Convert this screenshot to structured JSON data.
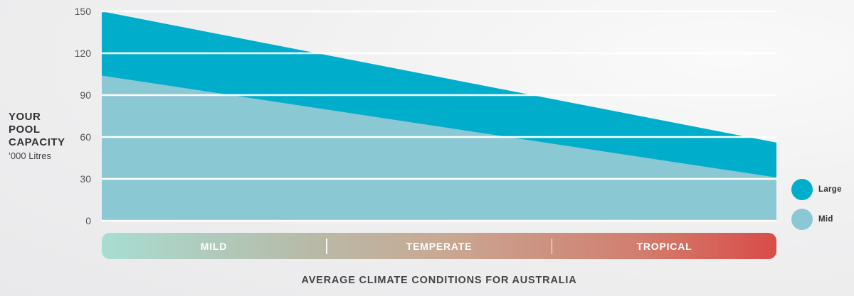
{
  "chart_data": {
    "type": "area",
    "x": [
      0,
      1
    ],
    "xlabel": "AVERAGE CLIMATE CONDITIONS FOR AUSTRALIA",
    "ylabel": "YOUR\nPOOL\nCAPACITY",
    "ylabel_unit": "’000 Litres",
    "ylim": [
      0,
      150
    ],
    "yticks": [
      0,
      30,
      60,
      90,
      120,
      150
    ],
    "grid": true,
    "legend_position": "right",
    "series": [
      {
        "name": "Large",
        "values": [
          150,
          56
        ],
        "color": "#00aecb"
      },
      {
        "name": "Mid",
        "values": [
          104,
          31
        ],
        "color": "#8ac9d3"
      }
    ],
    "climate_zones": [
      "MILD",
      "TEMPERATE",
      "TROPICAL"
    ]
  }
}
